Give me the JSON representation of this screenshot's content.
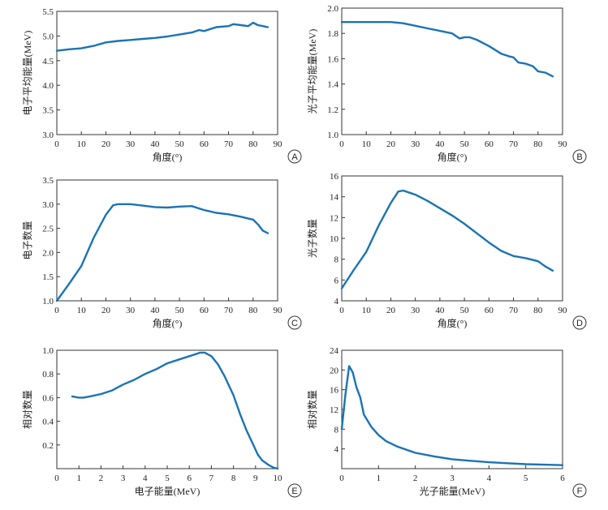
{
  "chart_data": [
    {
      "panel": "A",
      "type": "line",
      "xlabel": "角度(°)",
      "ylabel": "电子平均能量(MeV)",
      "xlim": [
        0,
        90
      ],
      "ylim": [
        3.0,
        5.5
      ],
      "xticks": [
        "0",
        "10",
        "20",
        "30",
        "40",
        "50",
        "60",
        "70",
        "80",
        "90"
      ],
      "yticks": [
        "3.0",
        "3.5",
        "4.0",
        "4.5",
        "5.0",
        "5.5"
      ],
      "x": [
        0,
        5,
        10,
        15,
        20,
        25,
        30,
        35,
        40,
        45,
        50,
        55,
        58,
        60,
        65,
        70,
        72,
        75,
        78,
        80,
        82,
        84,
        86
      ],
      "y": [
        4.7,
        4.73,
        4.75,
        4.8,
        4.87,
        4.9,
        4.92,
        4.94,
        4.96,
        4.99,
        5.03,
        5.07,
        5.12,
        5.1,
        5.18,
        5.2,
        5.24,
        5.22,
        5.2,
        5.27,
        5.22,
        5.2,
        5.18
      ]
    },
    {
      "panel": "B",
      "type": "line",
      "xlabel": "角度(°)",
      "ylabel": "光子平均能量(MeV)",
      "xlim": [
        0,
        90
      ],
      "ylim": [
        1.0,
        2.0
      ],
      "xticks": [
        "0",
        "10",
        "20",
        "30",
        "40",
        "50",
        "60",
        "70",
        "80",
        "90"
      ],
      "yticks": [
        "1.0",
        "1.2",
        "1.4",
        "1.6",
        "1.8",
        "2.0"
      ],
      "x": [
        0,
        10,
        20,
        25,
        30,
        35,
        40,
        45,
        48,
        50,
        52,
        55,
        60,
        65,
        68,
        70,
        72,
        75,
        78,
        80,
        83,
        86
      ],
      "y": [
        1.89,
        1.89,
        1.89,
        1.88,
        1.86,
        1.84,
        1.82,
        1.8,
        1.76,
        1.77,
        1.77,
        1.75,
        1.7,
        1.64,
        1.62,
        1.61,
        1.57,
        1.56,
        1.54,
        1.5,
        1.49,
        1.46
      ]
    },
    {
      "panel": "C",
      "type": "line",
      "xlabel": "角度(°)",
      "ylabel": "电子数量",
      "xlim": [
        0,
        90
      ],
      "ylim": [
        1.0,
        3.5
      ],
      "xticks": [
        "0",
        "10",
        "20",
        "30",
        "40",
        "50",
        "60",
        "70",
        "80",
        "90"
      ],
      "yticks": [
        "1.0",
        "1.5",
        "2.0",
        "2.5",
        "3.0",
        "3.5"
      ],
      "x": [
        0,
        5,
        10,
        15,
        20,
        23,
        25,
        30,
        35,
        40,
        45,
        50,
        55,
        60,
        65,
        70,
        75,
        80,
        82,
        84,
        86
      ],
      "y": [
        1.0,
        1.35,
        1.72,
        2.3,
        2.78,
        2.98,
        3.0,
        3.0,
        2.97,
        2.94,
        2.93,
        2.95,
        2.96,
        2.88,
        2.82,
        2.79,
        2.74,
        2.68,
        2.58,
        2.45,
        2.4
      ]
    },
    {
      "panel": "D",
      "type": "line",
      "xlabel": "角度(°)",
      "ylabel": "光子数量",
      "xlim": [
        0,
        90
      ],
      "ylim": [
        4,
        16
      ],
      "xticks": [
        "0",
        "10",
        "20",
        "30",
        "40",
        "50",
        "60",
        "70",
        "80",
        "90"
      ],
      "yticks": [
        "4",
        "6",
        "8",
        "10",
        "12",
        "14",
        "16"
      ],
      "x": [
        0,
        5,
        10,
        15,
        20,
        23,
        25,
        30,
        35,
        40,
        45,
        50,
        55,
        60,
        65,
        70,
        75,
        80,
        83,
        86
      ],
      "y": [
        5.2,
        7.0,
        8.7,
        11.2,
        13.4,
        14.5,
        14.6,
        14.2,
        13.6,
        12.9,
        12.2,
        11.4,
        10.5,
        9.6,
        8.8,
        8.3,
        8.1,
        7.8,
        7.3,
        6.9
      ]
    },
    {
      "panel": "E",
      "type": "line",
      "xlabel": "电子能量(MeV)",
      "ylabel": "相对数量",
      "xlim": [
        0,
        10
      ],
      "ylim": [
        0,
        1.0
      ],
      "xticks": [
        "0",
        "1",
        "2",
        "3",
        "4",
        "5",
        "6",
        "7",
        "8",
        "9",
        "10"
      ],
      "yticks": [
        "0.2",
        "0.4",
        "0.6",
        "0.8",
        "1.0"
      ],
      "x": [
        0.7,
        1.0,
        1.2,
        1.5,
        2.0,
        2.5,
        3.0,
        3.5,
        4.0,
        4.5,
        5.0,
        5.5,
        6.0,
        6.5,
        6.7,
        7.0,
        7.3,
        7.6,
        8.0,
        8.3,
        8.6,
        8.9,
        9.1,
        9.3,
        9.6,
        9.8,
        10.0
      ],
      "y": [
        0.61,
        0.6,
        0.6,
        0.61,
        0.63,
        0.66,
        0.71,
        0.75,
        0.8,
        0.84,
        0.89,
        0.92,
        0.95,
        0.98,
        0.98,
        0.95,
        0.88,
        0.78,
        0.62,
        0.46,
        0.32,
        0.2,
        0.12,
        0.07,
        0.03,
        0.01,
        0.0
      ]
    },
    {
      "panel": "F",
      "type": "line",
      "xlabel": "光子能量(MeV)",
      "ylabel": "相对数量",
      "xlim": [
        0,
        6
      ],
      "ylim": [
        0,
        24
      ],
      "xticks": [
        "0",
        "1",
        "2",
        "3",
        "4",
        "5",
        "6"
      ],
      "yticks": [
        "4",
        "8",
        "12",
        "16",
        "20",
        "24"
      ],
      "x": [
        0,
        0.1,
        0.2,
        0.3,
        0.4,
        0.5,
        0.6,
        0.8,
        1.0,
        1.2,
        1.5,
        2.0,
        2.5,
        3.0,
        3.5,
        4.0,
        4.5,
        5.0,
        5.5,
        6.0
      ],
      "y": [
        8.0,
        15.0,
        20.8,
        19.5,
        16.5,
        14.5,
        11.0,
        8.5,
        6.8,
        5.6,
        4.5,
        3.2,
        2.5,
        1.9,
        1.6,
        1.3,
        1.1,
        0.9,
        0.8,
        0.7
      ]
    }
  ]
}
